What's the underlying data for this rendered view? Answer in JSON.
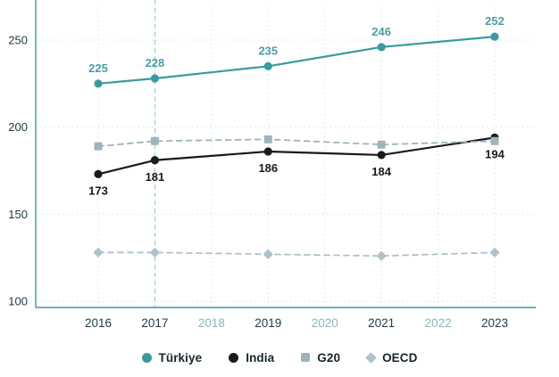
{
  "chart_data": {
    "type": "line",
    "title": "",
    "x": [
      2016,
      2017,
      2019,
      2021,
      2023
    ],
    "x_axis_ticks": [
      "2016",
      "2017",
      "2018",
      "2019",
      "2020",
      "2021",
      "2022",
      "2023"
    ],
    "x_tick_muted": [
      "2018",
      "2020",
      "2022"
    ],
    "y_ticks": [
      100,
      150,
      200,
      250
    ],
    "ylim": [
      100,
      262
    ],
    "grid": true,
    "vertical_marker_year": 2017,
    "legend_position": "bottom",
    "colors": {
      "axis": "#3f9aa0",
      "grid": "#dcebec",
      "marker_line": "#a5cdd2",
      "tick_label": "#1c3a44",
      "tick_label_muted": "#86b7be"
    },
    "series": [
      {
        "name": "Türkiye",
        "color": "#3a9aa0",
        "marker": "circle",
        "dash": "solid",
        "values": [
          225,
          228,
          235,
          246,
          252
        ],
        "show_labels": true,
        "label_color": "#4d9da3",
        "label_position": "above"
      },
      {
        "name": "India",
        "color": "#1b1b1b",
        "marker": "circle",
        "dash": "solid",
        "values": [
          173,
          181,
          186,
          184,
          194
        ],
        "show_labels": true,
        "label_color": "#1b1b1b",
        "label_position": "below"
      },
      {
        "name": "G20",
        "color": "#9db4bb",
        "marker": "square",
        "dash": "dashed",
        "values": [
          189,
          192,
          193,
          190,
          192
        ],
        "show_labels": false,
        "label_color": "#9db4bb",
        "label_position": "above"
      },
      {
        "name": "OECD",
        "color": "#aec3c9",
        "marker": "diamond",
        "dash": "dashed",
        "values": [
          128,
          128,
          127,
          126,
          128
        ],
        "show_labels": false,
        "label_color": "#aec3c9",
        "label_position": "below"
      }
    ]
  }
}
